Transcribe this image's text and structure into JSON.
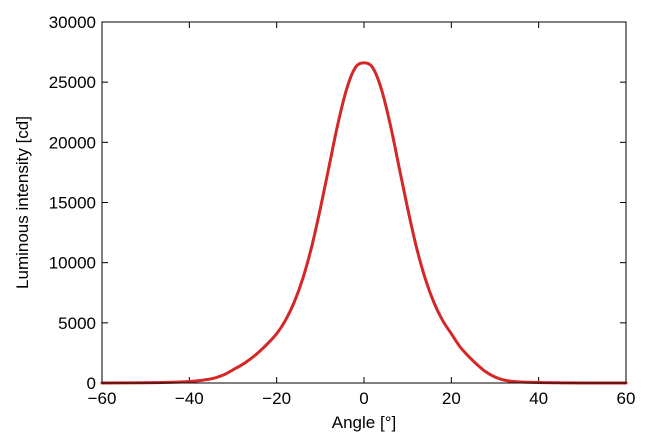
{
  "chart_data": {
    "type": "line",
    "title": "",
    "xlabel": "Angle [°]",
    "ylabel": "Luminous intensity [cd]",
    "xlim": [
      -60,
      60
    ],
    "ylim": [
      0,
      30000
    ],
    "xticks": [
      -60,
      -40,
      -20,
      0,
      20,
      40,
      60
    ],
    "yticks": [
      0,
      5000,
      10000,
      15000,
      20000,
      25000,
      30000
    ],
    "xtick_labels": [
      "−60",
      "−40",
      "−20",
      "0",
      "20",
      "40",
      "60"
    ],
    "ytick_labels": [
      "0",
      "5000",
      "10000",
      "15000",
      "20000",
      "25000",
      "30000"
    ],
    "grid": false,
    "legend": "none",
    "series": [
      {
        "color": "#d62728",
        "x": [
          -60,
          -50,
          -45,
          -40,
          -35,
          -32,
          -30,
          -28,
          -26,
          -24,
          -22,
          -20,
          -18,
          -16,
          -14,
          -12,
          -10,
          -8,
          -6,
          -4,
          -2,
          0,
          2,
          4,
          6,
          8,
          10,
          12,
          14,
          16,
          18,
          20,
          22,
          24,
          26,
          28,
          30,
          32,
          35,
          40,
          45,
          50,
          60
        ],
        "y": [
          0,
          20,
          50,
          120,
          350,
          700,
          1100,
          1500,
          2000,
          2600,
          3300,
          4100,
          5200,
          6700,
          8700,
          11300,
          14500,
          18000,
          21500,
          24400,
          26200,
          26600,
          26200,
          24400,
          21500,
          18000,
          14500,
          11300,
          8700,
          6700,
          5200,
          4100,
          3000,
          2200,
          1500,
          900,
          500,
          250,
          100,
          40,
          15,
          5,
          0
        ]
      }
    ]
  }
}
